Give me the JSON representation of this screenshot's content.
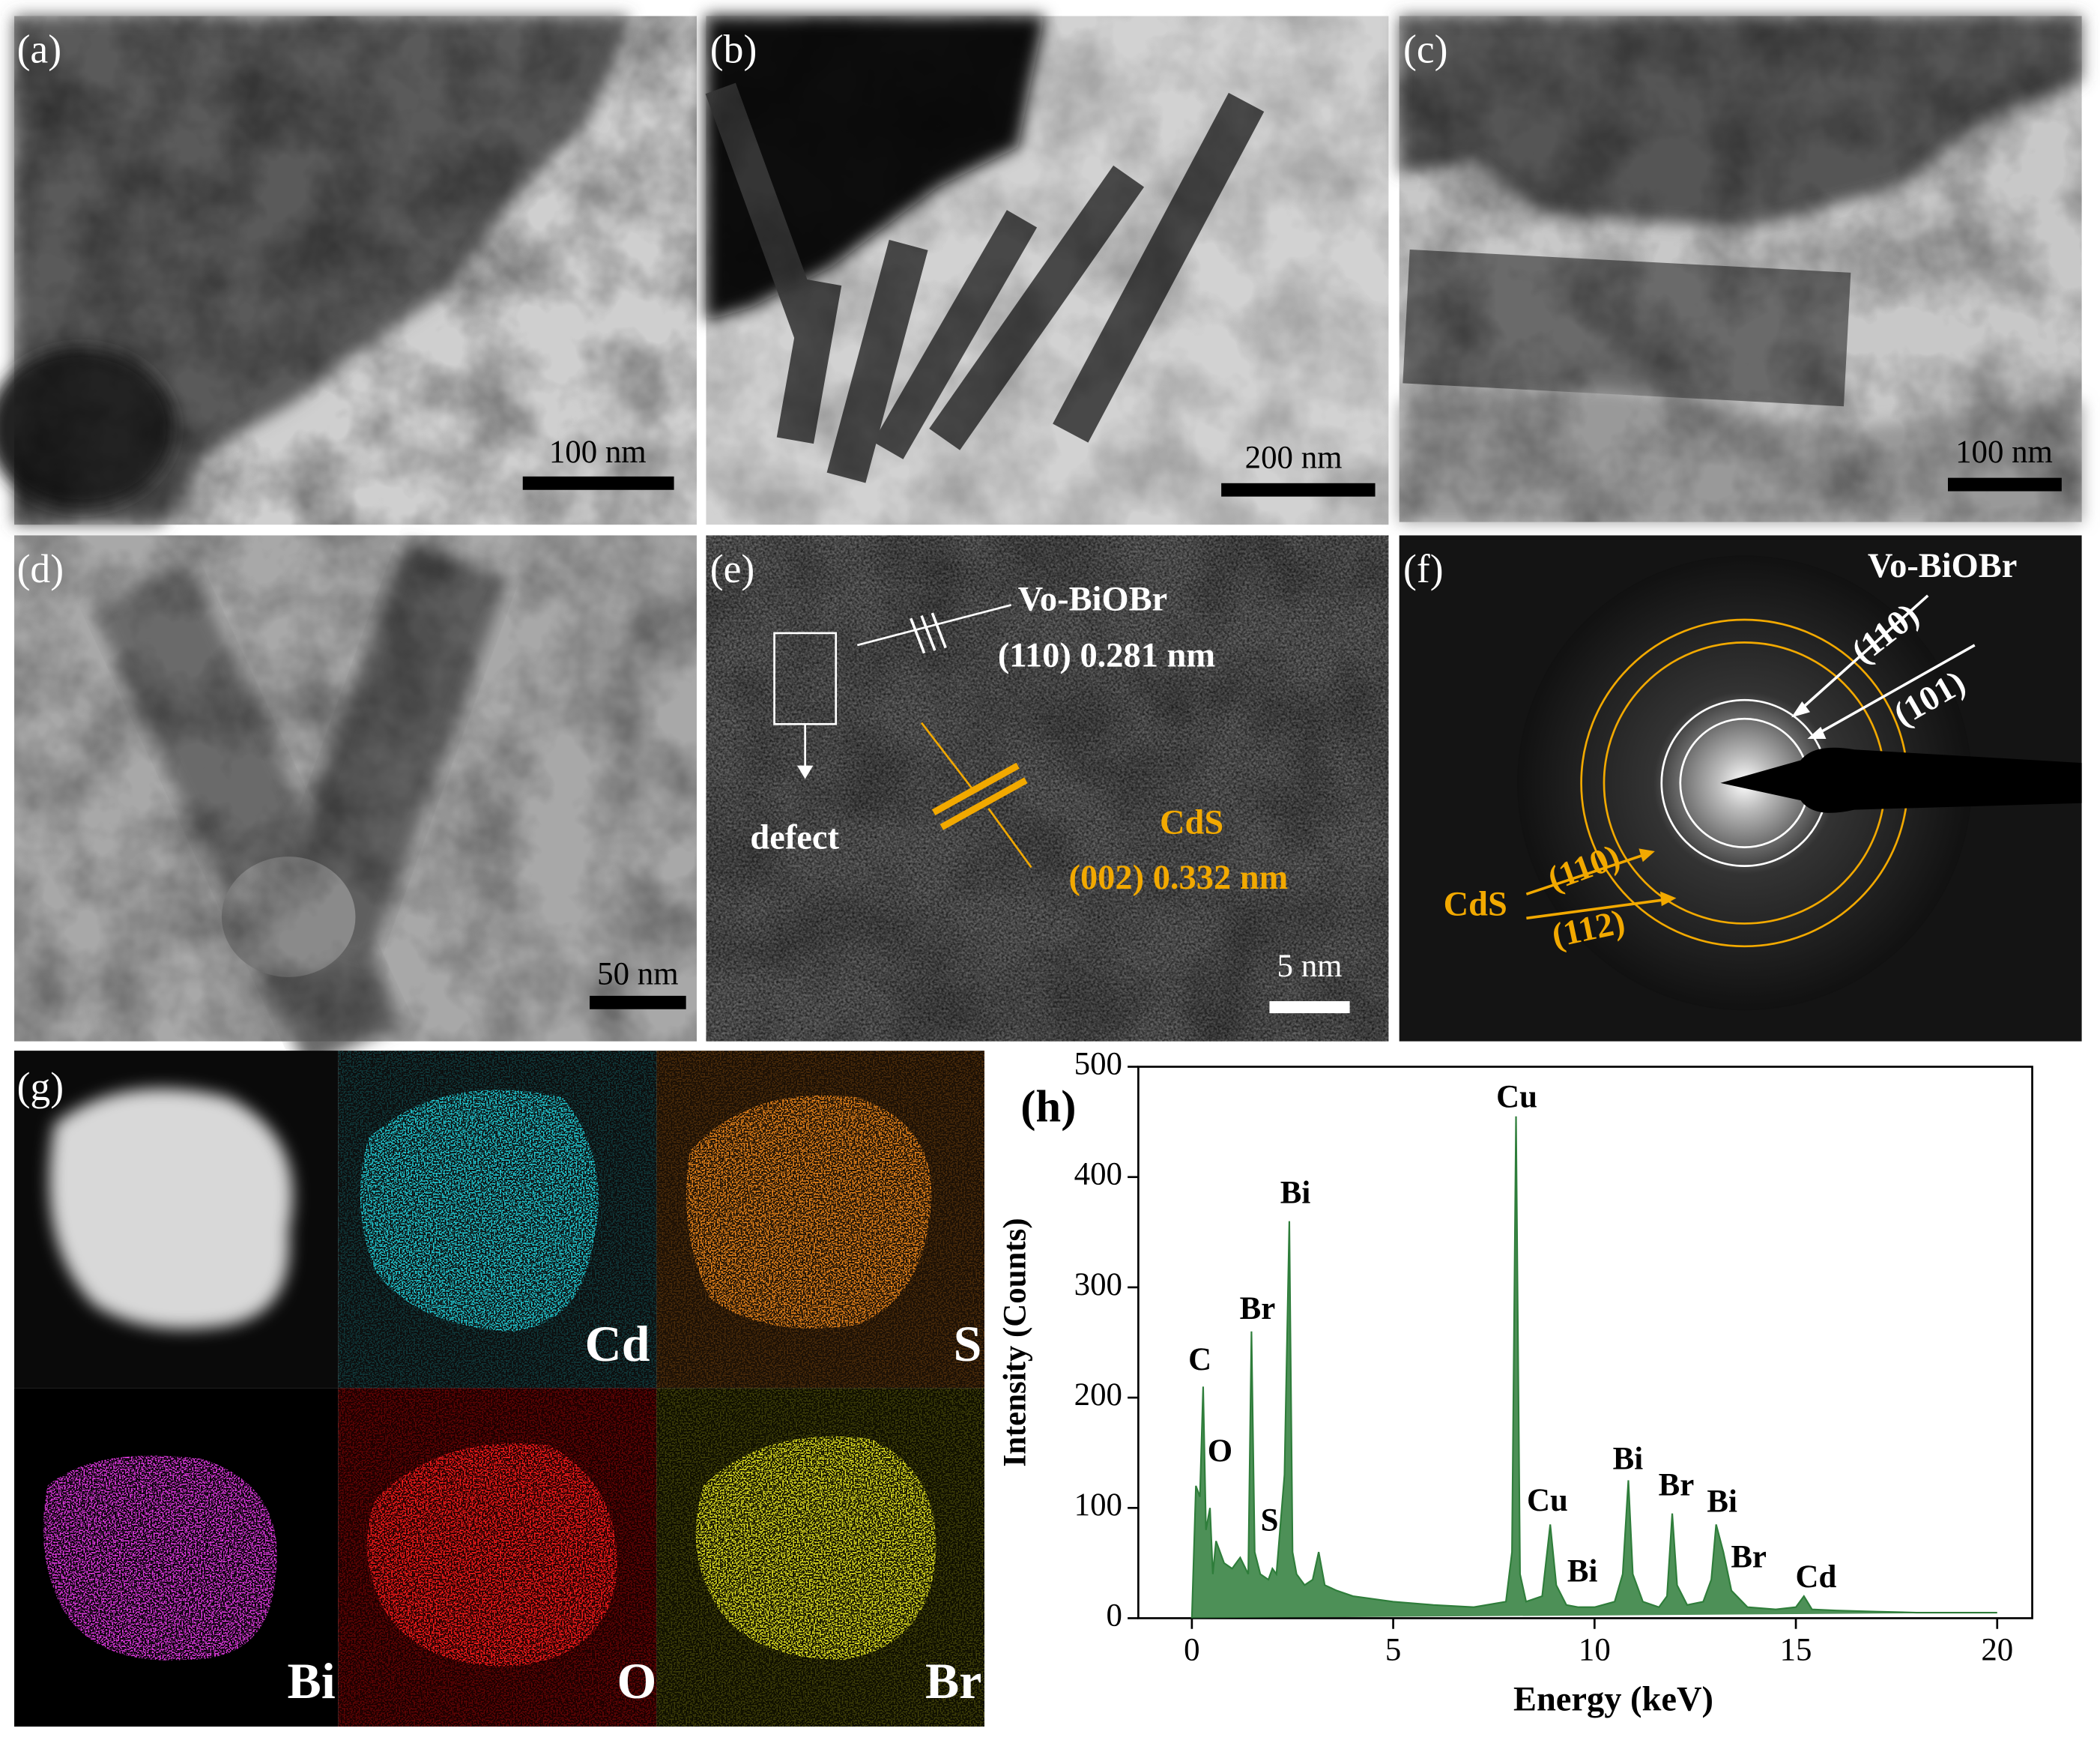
{
  "panels": {
    "a": {
      "label": "(a)",
      "scale_bar": "100 nm"
    },
    "b": {
      "label": "(b)",
      "scale_bar": "200 nm"
    },
    "c": {
      "label": "(c)",
      "scale_bar": "100 nm"
    },
    "d": {
      "label": "(d)",
      "scale_bar": "50 nm"
    },
    "e": {
      "label": "(e)",
      "scale_bar": "5 nm",
      "phase1": "Vo-BiOBr",
      "spacing1": "(110) 0.281 nm",
      "defect": "defect",
      "phase2": "CdS",
      "spacing2": "(002) 0.332 nm"
    },
    "f": {
      "label": "(f)",
      "phase1": "Vo-BiOBr",
      "ring1": "(110)",
      "ring2": "(101)",
      "phase2": "CdS",
      "ring3": "(110)",
      "ring4": "(112)"
    },
    "g": {
      "label": "(g)",
      "elements": [
        "Cd",
        "S",
        "Bi",
        "O",
        "Br"
      ]
    }
  },
  "chart_data": {
    "type": "area",
    "title": "(h)",
    "x_label": "Energy (keV)",
    "y_label": "Intensity (Counts)",
    "color": "#2e7d3a",
    "xlim": [
      -1.33,
      20.87
    ],
    "ylim": [
      0,
      500
    ],
    "xticks": [
      0,
      5,
      10,
      15,
      20
    ],
    "yticks": [
      0,
      100,
      200,
      300,
      400,
      500
    ],
    "x": [
      0,
      0.1,
      0.2,
      0.28,
      0.35,
      0.45,
      0.52,
      0.6,
      0.8,
      1.0,
      1.2,
      1.4,
      1.48,
      1.56,
      1.7,
      1.9,
      2.0,
      2.1,
      2.3,
      2.42,
      2.5,
      2.6,
      2.8,
      3.0,
      3.15,
      3.3,
      3.6,
      4,
      5,
      6,
      7,
      7.8,
      7.95,
      8.05,
      8.15,
      8.3,
      8.7,
      8.9,
      9.05,
      9.3,
      9.6,
      10,
      10.5,
      10.7,
      10.84,
      10.95,
      11.2,
      11.6,
      11.8,
      11.93,
      12.05,
      12.3,
      12.7,
      12.9,
      13.02,
      13.2,
      13.4,
      13.8,
      14.5,
      15.0,
      15.2,
      15.4,
      16,
      17,
      18,
      19,
      20
    ],
    "values": [
      0,
      120,
      110,
      210,
      80,
      100,
      40,
      70,
      50,
      45,
      55,
      40,
      260,
      60,
      40,
      35,
      45,
      40,
      130,
      360,
      60,
      40,
      30,
      35,
      60,
      30,
      25,
      20,
      15,
      12,
      10,
      15,
      60,
      455,
      40,
      15,
      20,
      85,
      30,
      12,
      10,
      10,
      15,
      40,
      125,
      40,
      15,
      10,
      20,
      95,
      30,
      12,
      15,
      35,
      85,
      60,
      25,
      10,
      8,
      10,
      20,
      8,
      7,
      6,
      5,
      5,
      5
    ],
    "peaks": [
      {
        "label": "Cu",
        "x": 8.07,
        "y": 470
      },
      {
        "label": "Bi",
        "x": 2.57,
        "y": 383
      },
      {
        "label": "Br",
        "x": 1.63,
        "y": 278
      },
      {
        "label": "C",
        "x": 0.2,
        "y": 232
      },
      {
        "label": "O",
        "x": 0.7,
        "y": 149
      },
      {
        "label": "S",
        "x": 1.93,
        "y": 86
      },
      {
        "label": "Cu",
        "x": 8.83,
        "y": 104
      },
      {
        "label": "Bi",
        "x": 9.7,
        "y": 40
      },
      {
        "label": "Bi",
        "x": 10.83,
        "y": 142
      },
      {
        "label": "Br",
        "x": 12.03,
        "y": 118
      },
      {
        "label": "Bi",
        "x": 13.17,
        "y": 103
      },
      {
        "label": "Br",
        "x": 13.83,
        "y": 53
      },
      {
        "label": "Cd",
        "x": 15.5,
        "y": 35
      }
    ]
  }
}
